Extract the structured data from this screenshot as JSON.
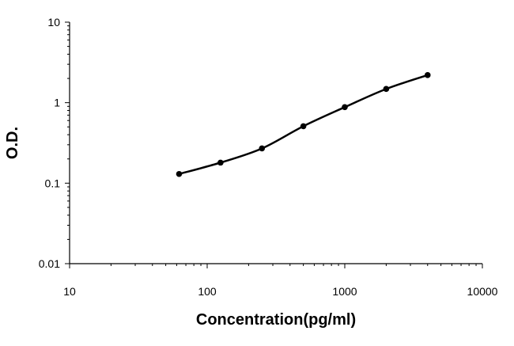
{
  "chart_data": {
    "type": "line",
    "xlabel": "Concentration(pg/ml)",
    "ylabel": "O.D.",
    "xscale": "log",
    "yscale": "log",
    "xlim": [
      10,
      10000
    ],
    "ylim": [
      0.01,
      10
    ],
    "xticks": [
      "10",
      "100",
      "1000",
      "10000"
    ],
    "yticks": [
      "0.01",
      "0.1",
      "1",
      "10"
    ],
    "grid": false,
    "legend": "none",
    "series": [
      {
        "x": [
          62.5,
          125,
          250,
          500,
          1000,
          2000,
          4000
        ],
        "y": [
          0.13,
          0.18,
          0.27,
          0.51,
          0.88,
          1.48,
          2.2
        ],
        "marker": "circle",
        "color": "#000000"
      }
    ]
  }
}
